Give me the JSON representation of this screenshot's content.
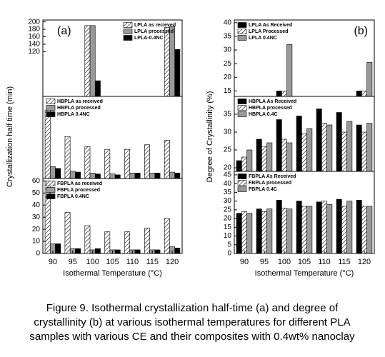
{
  "chart_data": [
    {
      "type": "bar",
      "panel_label": "(a)",
      "y_label": "Crystallization half time (min)",
      "x_label": "Isothermal Temperature (°C)",
      "categories": [
        "90",
        "95",
        "100",
        "105",
        "110",
        "115",
        "120"
      ],
      "panels": [
        {
          "ylim": [
            0,
            205
          ],
          "yticks": [
            120,
            140,
            160,
            180,
            200
          ],
          "legend": "upper right",
          "series": [
            {
              "name": "LPLA as recieved",
              "color": "#ffffff",
              "hatch": true,
              "values": [
                null,
                null,
                190,
                null,
                null,
                null,
                185
              ]
            },
            {
              "name": "LPLA processed",
              "color": "#999999",
              "hatch": false,
              "values": [
                null,
                null,
                190,
                null,
                null,
                null,
                188
              ]
            },
            {
              "name": "LPLA-0.4NC",
              "color": "#000000",
              "hatch": false,
              "values": [
                null,
                null,
                42,
                null,
                null,
                null,
                126
              ]
            }
          ]
        },
        {
          "ylim": [
            0,
            90
          ],
          "legend": "upper left",
          "series": [
            {
              "name": "HBPLA as received",
              "color": "#ffffff",
              "hatch": true,
              "values": [
                75,
                46,
                35,
                32,
                32,
                37,
                42
              ]
            },
            {
              "name": "HBPLA processed",
              "color": "#999999",
              "hatch": false,
              "values": [
                13,
                8,
                6,
                5,
                6,
                6,
                7
              ]
            },
            {
              "name": "HBPLA 0.4NC",
              "color": "#000000",
              "hatch": false,
              "values": [
                11,
                7,
                5,
                4,
                6,
                6,
                6
              ]
            }
          ]
        },
        {
          "ylim": [
            0,
            62
          ],
          "yticks": [
            0,
            10,
            20,
            30,
            40,
            50,
            60
          ],
          "legend": "upper left",
          "series": [
            {
              "name": "FBPLA as received",
              "color": "#ffffff",
              "hatch": true,
              "values": [
                60,
                34,
                23,
                18,
                18,
                21,
                29
              ]
            },
            {
              "name": "FBPLA processed",
              "color": "#999999",
              "hatch": false,
              "values": [
                8,
                4,
                3,
                3,
                3,
                3,
                5.5
              ]
            },
            {
              "name": "FBPLA 0.4NC",
              "color": "#000000",
              "hatch": false,
              "values": [
                8,
                4,
                4,
                3,
                3,
                3,
                4.5
              ]
            }
          ]
        }
      ]
    },
    {
      "type": "bar",
      "panel_label": "(b)",
      "y_label": "Degree of Crystallinity (%)",
      "x_label": "Isothermal Temperature (°C)",
      "categories": [
        "90",
        "95",
        "100",
        "105",
        "110",
        "115",
        "120"
      ],
      "panels": [
        {
          "ylim": [
            13,
            41
          ],
          "yticks": [
            15,
            20,
            25,
            30,
            35,
            40
          ],
          "legend": "upper left",
          "series": [
            {
              "name": "LPLA As Received",
              "color": "#000000",
              "hatch": false,
              "values": [
                null,
                null,
                15,
                null,
                null,
                null,
                15
              ]
            },
            {
              "name": "LPLA Processed",
              "color": "#ffffff",
              "hatch": true,
              "values": [
                null,
                null,
                15,
                null,
                null,
                null,
                15
              ]
            },
            {
              "name": "LPLA 0.4NC",
              "color": "#999999",
              "hatch": false,
              "values": [
                null,
                null,
                32,
                null,
                null,
                null,
                25.5
              ]
            }
          ]
        },
        {
          "ylim": [
            19,
            40
          ],
          "yticks": [
            20,
            25,
            30,
            35
          ],
          "legend": "upper left",
          "series": [
            {
              "name": "HBPLA As Received",
              "color": "#000000",
              "hatch": false,
              "values": [
                22,
                28,
                33.5,
                34.5,
                36.5,
                35.5,
                32
              ]
            },
            {
              "name": "HBPLA processed",
              "color": "#ffffff",
              "hatch": true,
              "values": [
                23,
                26,
                28,
                29.5,
                32.5,
                30,
                30
              ]
            },
            {
              "name": "HBPLA 0.4C",
              "color": "#999999",
              "hatch": false,
              "values": [
                25,
                27,
                27,
                31,
                32,
                33,
                32.5
              ]
            }
          ]
        },
        {
          "ylim": [
            0,
            47
          ],
          "yticks": [
            0,
            5,
            10,
            15,
            20,
            25,
            30,
            35,
            40,
            45
          ],
          "legend": "upper left",
          "series": [
            {
              "name": "FBPLA As Received",
              "color": "#000000",
              "hatch": false,
              "values": [
                23,
                25.5,
                30.5,
                30,
                29.5,
                31,
                30.5
              ]
            },
            {
              "name": "FBPLA processed",
              "color": "#ffffff",
              "hatch": true,
              "values": [
                24,
                24,
                26,
                27,
                30,
                27,
                27
              ]
            },
            {
              "name": "FBPLA 0.4C",
              "color": "#999999",
              "hatch": false,
              "values": [
                23,
                25.5,
                25.5,
                27,
                28,
                30,
                27
              ]
            }
          ]
        }
      ]
    }
  ],
  "caption": [
    "Figure 9. Isothermal crystallization half-time (a) and degree of",
    "crystallinity (b) at various isothermal temperatures for different PLA",
    "samples with various CE and their composites with 0.4wt% nanoclay"
  ]
}
